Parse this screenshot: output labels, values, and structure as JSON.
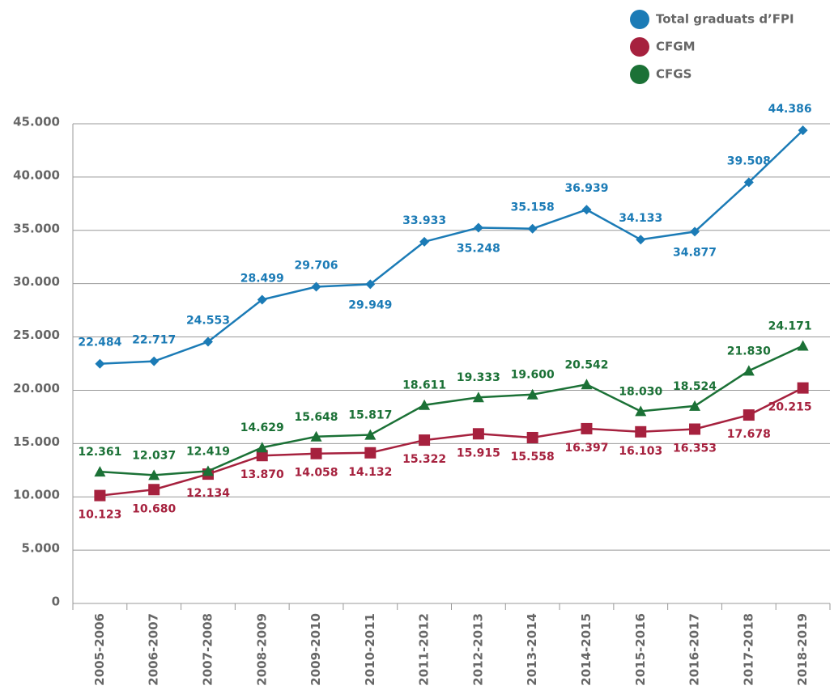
{
  "chart_data": {
    "type": "line",
    "categories": [
      "2005-2006",
      "2006-2007",
      "2007-2008",
      "2008-2009",
      "2009-2010",
      "2010-2011",
      "2011-2012",
      "2012-2013",
      "2013-2014",
      "2014-2015",
      "2015-2016",
      "2016-2017",
      "2017-2018",
      "2018-2019"
    ],
    "series": [
      {
        "name": "Total graduats d’FPI",
        "color": "#1b7bb6",
        "marker": "diamond",
        "values": [
          22484,
          22717,
          24553,
          28499,
          29706,
          29949,
          33933,
          35248,
          35158,
          36939,
          34133,
          34877,
          39508,
          44386
        ],
        "value_labels": [
          "22.484",
          "22.717",
          "24.553",
          "28.499",
          "29.706",
          "29.949",
          "33.933",
          "35.248",
          "35.158",
          "36.939",
          "34.133",
          "34.877",
          "39.508",
          "44.386"
        ]
      },
      {
        "name": "CFGM",
        "color": "#a6213e",
        "marker": "square",
        "values": [
          10123,
          10680,
          12134,
          13870,
          14058,
          14132,
          15322,
          15915,
          15558,
          16397,
          16103,
          16353,
          17678,
          20215
        ],
        "value_labels": [
          "10.123",
          "10.680",
          "12.134",
          "13.870",
          "14.058",
          "14.132",
          "15.322",
          "15.915",
          "15.558",
          "16.397",
          "16.103",
          "16.353",
          "17.678",
          "20.215"
        ]
      },
      {
        "name": "CFGS",
        "color": "#1b7136",
        "marker": "triangle",
        "values": [
          12361,
          12037,
          12419,
          14629,
          15648,
          15817,
          18611,
          19333,
          19600,
          20542,
          18030,
          18524,
          21830,
          24171
        ],
        "value_labels": [
          "12.361",
          "12.037",
          "12.419",
          "14.629",
          "15.648",
          "15.817",
          "18.611",
          "19.333",
          "19.600",
          "20.542",
          "18.030",
          "18.524",
          "21.830",
          "24.171"
        ]
      }
    ],
    "ylim": [
      0,
      45000
    ],
    "yticks": [
      0,
      {
        "value": 5000,
        "label": "5.000"
      },
      {
        "value": 10000,
        "label": "10.000"
      },
      {
        "value": 15000,
        "label": "15.000"
      },
      {
        "value": 20000,
        "label": "20.000"
      },
      {
        "value": 25000,
        "label": "25.000"
      },
      {
        "value": 30000,
        "label": "30.000"
      },
      {
        "value": 35000,
        "label": "35.000"
      },
      {
        "value": 40000,
        "label": "40.000"
      },
      {
        "value": 45000,
        "label": "45.000"
      }
    ],
    "grid": true,
    "legend": "top-right"
  }
}
